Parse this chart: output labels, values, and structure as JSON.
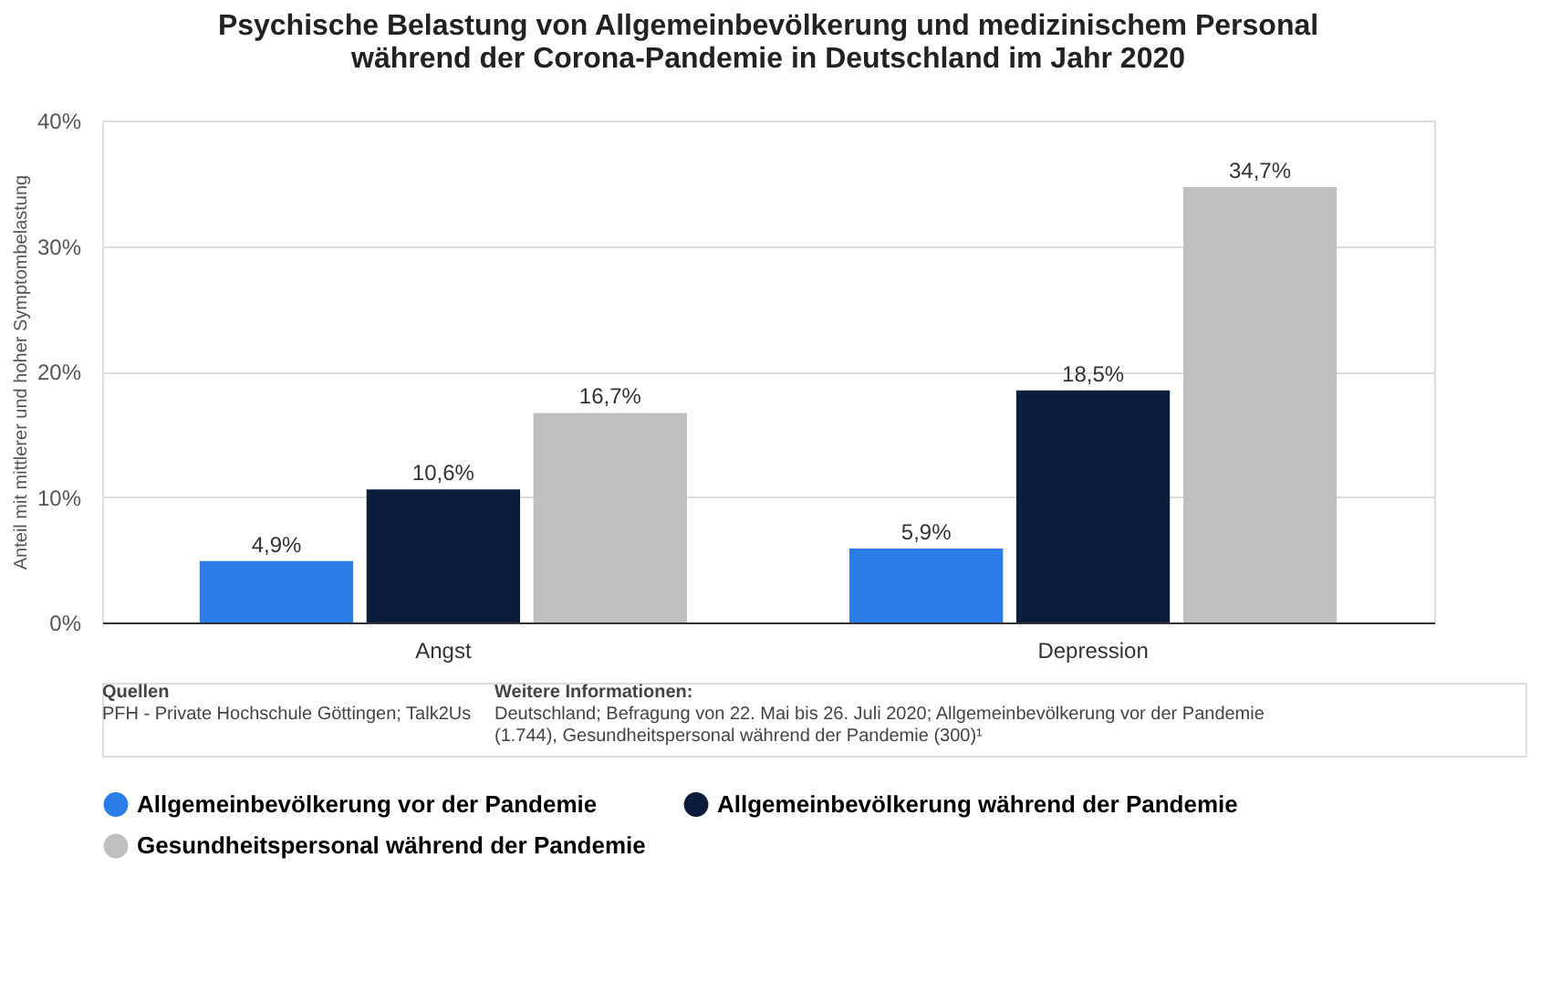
{
  "chart_data": {
    "type": "bar",
    "title": "Psychische Belastung von Allgemeinbevölkerung und medizinischem Personal\nwährend der Corona-Pandemie in Deutschland im Jahr 2020",
    "ylabel": "Anteil mit mittlerer und hoher Symptombelastung",
    "categories": [
      "Angst",
      "Depression"
    ],
    "series": [
      {
        "name": "Allgemeinbevölkerung vor der Pandemie",
        "color": "#2b7de9",
        "values": [
          4.9,
          5.9
        ],
        "value_labels": [
          "4,9%",
          "5,9%"
        ]
      },
      {
        "name": "Allgemeinbevölkerung während der Pandemie",
        "color": "#0b1d3a",
        "values": [
          10.6,
          18.5
        ],
        "value_labels": [
          "10,6%",
          "18,5%"
        ]
      },
      {
        "name": "Gesundheitspersonal während der Pandemie",
        "color": "#bfbfbf",
        "values": [
          16.7,
          34.7
        ],
        "value_labels": [
          "16,7%",
          "34,7%"
        ]
      }
    ],
    "ylim": [
      0,
      40
    ],
    "yticks": [
      {
        "value": 0,
        "label": "0%"
      },
      {
        "value": 10,
        "label": "10%"
      },
      {
        "value": 20,
        "label": "20%"
      },
      {
        "value": 30,
        "label": "30%"
      },
      {
        "value": 40,
        "label": "40%"
      }
    ],
    "grid": "y",
    "legend": "bottom",
    "annotations": [
      "Quellen",
      "PFH - Private Hochschule Göttingen; Talk2Us",
      "Weitere Informationen:",
      "Deutschland; Befragung von 22. Mai bis 26. Juli 2020; Allgemeinbevölkerung vor der Pandemie",
      "(1.744), Gesundheitspersonal während der Pandemie (300)¹"
    ]
  }
}
